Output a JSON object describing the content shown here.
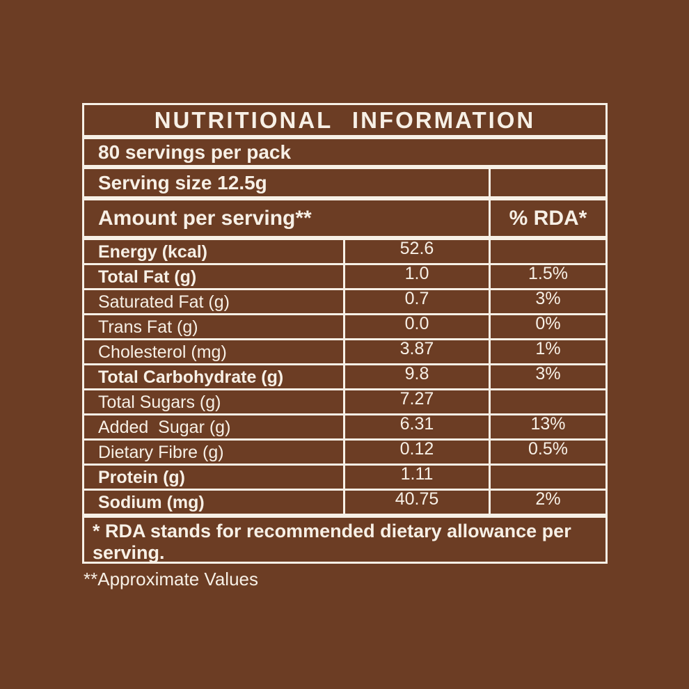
{
  "colors": {
    "background": "#6C3D24",
    "text": "#F7F0E6",
    "border": "#F7F0E6"
  },
  "table": {
    "title": "NUTRITIONAL INFORMATION",
    "servings_per_pack": "80 servings per pack",
    "serving_size": "Serving size 12.5g",
    "header": {
      "amount_label": "Amount per serving**",
      "rda_label": "% RDA*"
    },
    "rows": [
      {
        "label": "Energy (kcal)",
        "amount": "52.6",
        "rda": "",
        "bold": true
      },
      {
        "label": "Total Fat (g)",
        "amount": "1.0",
        "rda": "1.5%",
        "bold": true
      },
      {
        "label": "Saturated Fat (g)",
        "amount": "0.7",
        "rda": "3%",
        "bold": false
      },
      {
        "label": "Trans Fat (g)",
        "amount": "0.0",
        "rda": "0%",
        "bold": false
      },
      {
        "label": "Cholesterol (mg)",
        "amount": "3.87",
        "rda": "1%",
        "bold": false
      },
      {
        "label": "Total Carbohydrate (g)",
        "amount": "9.8",
        "rda": "3%",
        "bold": true
      },
      {
        "label": "Total Sugars (g)",
        "amount": "7.27",
        "rda": "",
        "bold": false
      },
      {
        "label": "Added  Sugar (g)",
        "amount": "6.31",
        "rda": "13%",
        "bold": false
      },
      {
        "label": "Dietary Fibre (g)",
        "amount": "0.12",
        "rda": "0.5%",
        "bold": false
      },
      {
        "label": "Protein (g)",
        "amount": "1.11",
        "rda": "",
        "bold": true
      },
      {
        "label": "Sodium (mg)",
        "amount": "40.75",
        "rda": "2%",
        "bold": true
      }
    ],
    "footnote": "* RDA stands for recommended dietary allowance per serving."
  },
  "approximate_note": "**Approximate Values"
}
